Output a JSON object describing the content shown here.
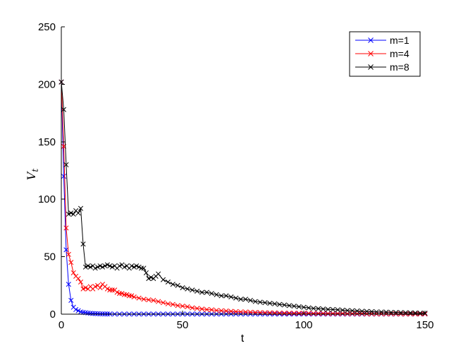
{
  "chart_data": {
    "type": "line",
    "title": "",
    "xlabel": "t",
    "ylabel": "V",
    "ylabel_subscript": "t",
    "xlim": [
      0,
      150
    ],
    "ylim": [
      0,
      250
    ],
    "xticks": [
      0,
      50,
      100,
      150
    ],
    "yticks": [
      0,
      50,
      100,
      150,
      200,
      250
    ],
    "grid": false,
    "legend_position": "top-right",
    "marker": "x",
    "series": [
      {
        "name": "m=1",
        "color": "#0000ff",
        "x": [
          0,
          1,
          2,
          3,
          4,
          5,
          6,
          7,
          8,
          9,
          10,
          11,
          12,
          13,
          14,
          15,
          16,
          17,
          18,
          19,
          20,
          22,
          24,
          26,
          28,
          30,
          32,
          34,
          36,
          38,
          40,
          42,
          44,
          46,
          48,
          50,
          52,
          54,
          56,
          58,
          60,
          62,
          64,
          66,
          68,
          70,
          72,
          74,
          76,
          78,
          80,
          82,
          84,
          86,
          88,
          90,
          92,
          94,
          96,
          98,
          100,
          102,
          104,
          106,
          108,
          110,
          112,
          114,
          116,
          118,
          120,
          122,
          124,
          126,
          128,
          130,
          132,
          134,
          136,
          138,
          140,
          142,
          144,
          146,
          148,
          150
        ],
        "values": [
          202,
          120,
          56,
          26,
          12,
          6,
          4,
          3,
          2,
          1.6,
          1.3,
          1,
          0.8,
          0.6,
          0.5,
          0.4,
          0.3,
          0.3,
          0.2,
          0.2,
          0.2,
          0.1,
          0.1,
          0.1,
          0.1,
          0.1,
          0.1,
          0.1,
          0.1,
          0.1,
          0.1,
          0.1,
          0.1,
          0.1,
          0.1,
          0.1,
          0.1,
          0.1,
          0.1,
          0.1,
          0.1,
          0.1,
          0.1,
          0.1,
          0.1,
          0.1,
          0.1,
          0.1,
          0.1,
          0.1,
          0.1,
          0.1,
          0.1,
          0.1,
          0.1,
          0.1,
          0.1,
          0.1,
          0.1,
          0.1,
          0.1,
          0.1,
          0.1,
          0.1,
          0.1,
          0.1,
          0.1,
          0.1,
          0.1,
          0.1,
          0.1,
          0.1,
          0.1,
          0.1,
          0.1,
          0.1,
          0.1,
          0.1,
          0.1,
          0.1,
          0.1,
          0.1,
          0.1,
          0.1,
          0.1,
          0.1
        ]
      },
      {
        "name": "m=4",
        "color": "#ff0000",
        "x": [
          0,
          1,
          2,
          3,
          4,
          5,
          6,
          7,
          8,
          9,
          10,
          11,
          12,
          13,
          14,
          15,
          16,
          17,
          18,
          19,
          20,
          21,
          22,
          23,
          24,
          25,
          26,
          27,
          28,
          29,
          30,
          32,
          34,
          36,
          38,
          40,
          42,
          44,
          46,
          48,
          50,
          52,
          54,
          56,
          58,
          60,
          62,
          64,
          66,
          68,
          70,
          72,
          74,
          76,
          78,
          80,
          82,
          84,
          86,
          88,
          90,
          92,
          94,
          96,
          98,
          100,
          102,
          104,
          106,
          108,
          110,
          112,
          114,
          116,
          118,
          120,
          122,
          124,
          126,
          128,
          130,
          132,
          134,
          136,
          138,
          140,
          142,
          144,
          146,
          148,
          150
        ],
        "values": [
          202,
          146,
          75,
          52,
          45,
          36,
          33,
          31,
          28,
          22,
          23,
          22,
          24,
          22,
          24,
          25,
          23,
          26,
          24,
          22,
          21,
          21,
          21,
          19,
          18,
          18,
          17,
          17,
          16,
          16,
          15,
          14,
          13,
          12.5,
          12,
          11,
          10,
          9,
          8.5,
          7.5,
          7,
          6.5,
          5.5,
          5,
          4.5,
          4,
          3.8,
          3.3,
          3,
          2.8,
          2.5,
          2.2,
          2,
          1.9,
          1.7,
          1.5,
          1.4,
          1.3,
          1.2,
          1.1,
          1,
          0.9,
          0.9,
          0.8,
          0.8,
          0.7,
          0.7,
          0.6,
          0.6,
          0.6,
          0.5,
          0.5,
          0.5,
          0.5,
          0.4,
          0.4,
          0.4,
          0.4,
          0.3,
          0.3,
          0.3,
          0.3,
          0.3,
          0.3,
          0.3,
          0.2,
          0.2,
          0.2,
          0.2,
          0.2,
          0.2
        ]
      },
      {
        "name": "m=8",
        "color": "#000000",
        "x": [
          0,
          1,
          2,
          3,
          4,
          5,
          6,
          7,
          8,
          9,
          10,
          11,
          12,
          13,
          14,
          15,
          16,
          17,
          18,
          19,
          20,
          21,
          22,
          23,
          24,
          25,
          26,
          27,
          28,
          29,
          30,
          31,
          32,
          33,
          34,
          35,
          36,
          37,
          38,
          39,
          40,
          42,
          44,
          46,
          48,
          50,
          52,
          54,
          56,
          58,
          60,
          62,
          64,
          66,
          68,
          70,
          72,
          74,
          76,
          78,
          80,
          82,
          84,
          86,
          88,
          90,
          92,
          94,
          96,
          98,
          100,
          102,
          104,
          106,
          108,
          110,
          112,
          114,
          116,
          118,
          120,
          122,
          124,
          126,
          128,
          130,
          132,
          134,
          136,
          138,
          140,
          142,
          144,
          146,
          148,
          150
        ],
        "values": [
          202,
          178,
          130,
          87,
          88,
          87,
          90,
          88,
          92,
          61,
          41,
          42,
          41,
          42,
          40,
          41,
          42,
          41,
          42,
          43,
          42,
          41,
          42,
          40,
          42,
          43,
          41,
          42,
          40,
          42,
          41,
          42,
          41,
          40,
          40,
          36,
          31,
          32,
          31,
          33,
          35,
          30,
          28,
          26,
          25,
          23,
          22,
          21,
          20,
          19,
          19,
          18,
          17,
          16,
          16,
          15,
          14,
          13,
          13,
          12,
          11,
          10.5,
          10,
          9.5,
          9,
          8.5,
          8,
          7.5,
          7,
          6.5,
          6,
          5.5,
          5,
          4.8,
          4.5,
          4.2,
          4,
          3.8,
          3.5,
          3.2,
          3,
          2.8,
          2.6,
          2.4,
          2.2,
          2,
          1.9,
          1.8,
          1.6,
          1.5,
          1.4,
          1.3,
          1.2,
          1.1,
          1,
          0.9
        ]
      }
    ]
  }
}
